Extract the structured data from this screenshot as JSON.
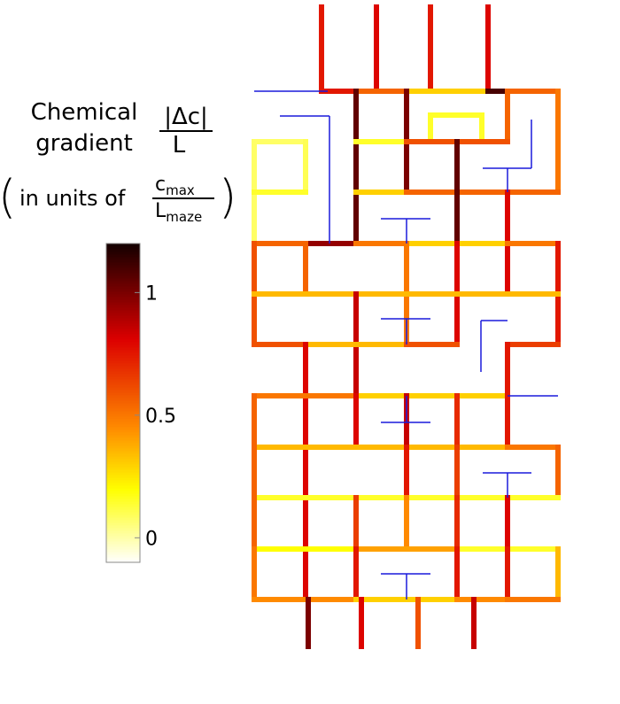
{
  "chart_data": {
    "type": "maze",
    "label_line1": "Chemical",
    "label_line2": "gradient",
    "numerator": "|Δc|",
    "denominator": "L",
    "units_prefix": "in units of",
    "units_num": "c",
    "units_num_sub": "max",
    "units_den": "L",
    "units_den_sub": "maze",
    "clim": [
      -0.1,
      1.2
    ],
    "cticks": [
      0,
      0.5,
      1
    ],
    "line_color": "#1a1adb",
    "segments": [
      0.75,
      0.8,
      0.75,
      0.8,
      0.75,
      0.55,
      0.3,
      1.1,
      0.55,
      1.05,
      1.0,
      0.55,
      0.5,
      0.15,
      0.15,
      0.15,
      0.15,
      0.6,
      0.08,
      0.08,
      0.1,
      0.15,
      0.3,
      0.55,
      1.05,
      0.8,
      0.55,
      0.95,
      0.5,
      0.3,
      0.5,
      0.6,
      0.55,
      0.5,
      0.8,
      0.75,
      0.35,
      0.85,
      0.6,
      0.35,
      0.6,
      0.65,
      0.8,
      0.75,
      0.5,
      0.3,
      0.55,
      0.8,
      0.85,
      0.7,
      0.75,
      0.35,
      0.5,
      0.55,
      0.75,
      0.65,
      0.55,
      0.15,
      0.55,
      0.65,
      0.45,
      0.7,
      0.8,
      0.2,
      0.4,
      0.15,
      0.5,
      0.75,
      0.75,
      0.75,
      0.35,
      0.45,
      0.3,
      0.45,
      0.5,
      1.0,
      0.8,
      0.6,
      0.85
    ]
  }
}
